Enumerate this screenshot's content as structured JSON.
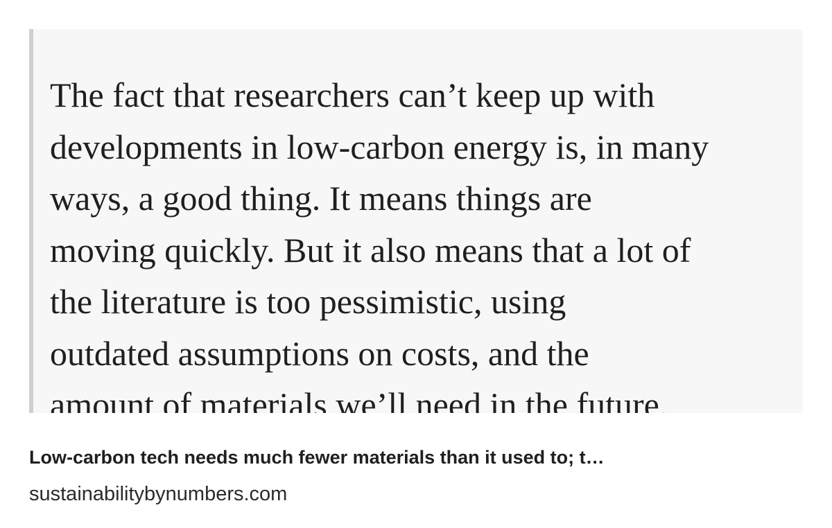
{
  "quote": {
    "lines": [
      "The fact that researchers can’t keep up with",
      "developments in low-carbon energy is, in many",
      "ways, a good thing. It means things are",
      "moving quickly. But it also means that a lot of",
      "the literature is too pessimistic, using",
      "outdated assumptions on costs, and the",
      "amount of materials we’ll need in the future."
    ]
  },
  "link": {
    "title": "Low-carbon tech needs much fewer materials than it used to; t…",
    "domain": "sustainabilitybynumbers.com"
  }
}
